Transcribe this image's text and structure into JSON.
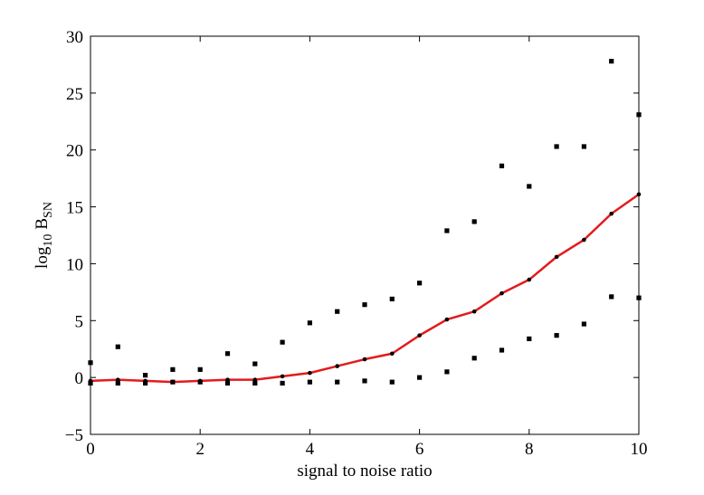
{
  "chart_data": {
    "type": "line",
    "xlabel": "signal to noise ratio",
    "ylabel_main": "log",
    "ylabel_sub": "10",
    "ylabel_var": "B",
    "ylabel_var_sub": "SN",
    "xlim": [
      0,
      10
    ],
    "ylim": [
      -5,
      30
    ],
    "x_ticks": [
      0,
      2,
      4,
      6,
      8,
      10
    ],
    "x_tick_labels": [
      "0",
      "2",
      "4",
      "6",
      "8",
      "10"
    ],
    "y_ticks": [
      -5,
      0,
      5,
      10,
      15,
      20,
      25,
      30
    ],
    "y_tick_labels": [
      "−5",
      "0",
      "5",
      "10",
      "15",
      "20",
      "25",
      "30"
    ],
    "grid": false,
    "line_color": "#e41a1c",
    "marker_color": "#000000",
    "series": [
      {
        "style": "line-with-dots",
        "x": [
          0,
          0.5,
          1,
          1.5,
          2,
          2.5,
          3,
          3.5,
          4,
          4.5,
          5,
          5.5,
          6,
          6.5,
          7,
          7.5,
          8,
          8.5,
          9,
          9.5,
          10
        ],
        "values": [
          -0.3,
          -0.2,
          -0.3,
          -0.4,
          -0.3,
          -0.2,
          -0.2,
          0.1,
          0.4,
          1.0,
          1.6,
          2.1,
          3.7,
          5.1,
          5.8,
          7.4,
          8.6,
          10.6,
          12.1,
          14.4,
          16.1
        ]
      },
      {
        "style": "square-markers",
        "x": [
          0,
          0.5,
          1,
          1.5,
          2,
          2.5,
          3,
          3.5,
          4,
          4.5,
          5,
          5.5,
          6,
          6.5,
          7,
          7.5,
          8,
          8.5,
          9,
          9.5,
          10
        ],
        "values": [
          1.3,
          2.7,
          0.2,
          0.7,
          0.7,
          2.1,
          1.2,
          3.1,
          4.8,
          5.8,
          6.4,
          6.9,
          8.3,
          12.9,
          13.7,
          18.6,
          16.8,
          20.3,
          20.3,
          27.8,
          23.1
        ]
      },
      {
        "style": "square-markers",
        "x": [
          0,
          0.5,
          1,
          1.5,
          2,
          2.5,
          3,
          3.5,
          4,
          4.5,
          5,
          5.5,
          6,
          6.5,
          7,
          7.5,
          8,
          8.5,
          9,
          9.5,
          10
        ],
        "values": [
          -0.5,
          -0.5,
          -0.5,
          -0.4,
          -0.4,
          -0.5,
          -0.5,
          -0.5,
          -0.4,
          -0.4,
          -0.3,
          -0.4,
          0.0,
          0.5,
          1.7,
          2.4,
          3.4,
          3.7,
          4.7,
          7.1,
          7.0
        ]
      }
    ]
  }
}
